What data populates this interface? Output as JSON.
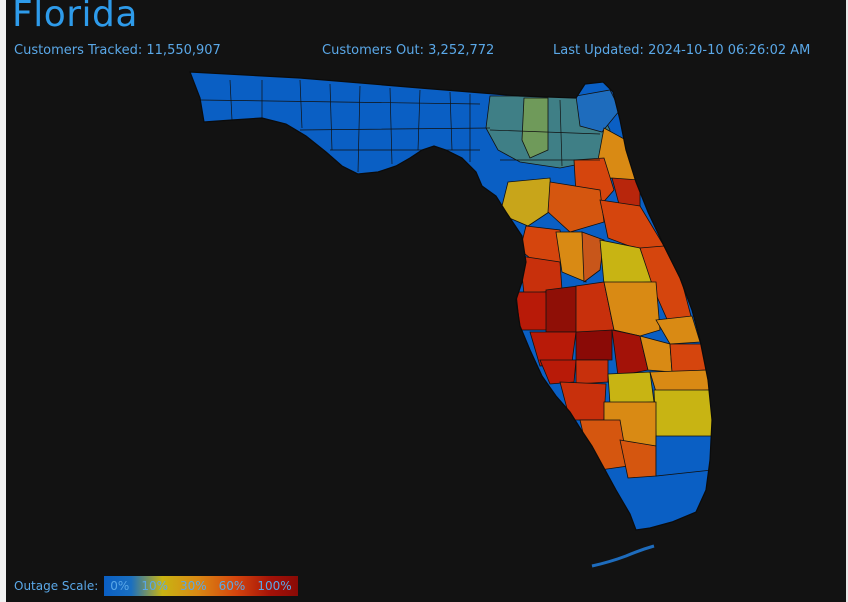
{
  "title": "Florida",
  "stats": {
    "tracked_label": "Customers Tracked:",
    "tracked_value": "11,550,907",
    "out_label": "Customers Out:",
    "out_value": "3,252,772",
    "updated_label": "Last Updated:",
    "updated_value": "2024-10-10 06:26:02 AM"
  },
  "legend": {
    "title": "Outage Scale:",
    "stops": [
      "0%",
      "10%",
      "30%",
      "60%",
      "100%"
    ]
  },
  "colors": {
    "text": "#5aa8e8",
    "title": "#2e9bea",
    "background": "#121212",
    "outage_0": "#0a5fc4",
    "outage_low": "#3f7f86",
    "outage_10": "#c8b413",
    "outage_30": "#d98a14",
    "outage_60": "#d5450d",
    "outage_100": "#8a0a06"
  }
}
